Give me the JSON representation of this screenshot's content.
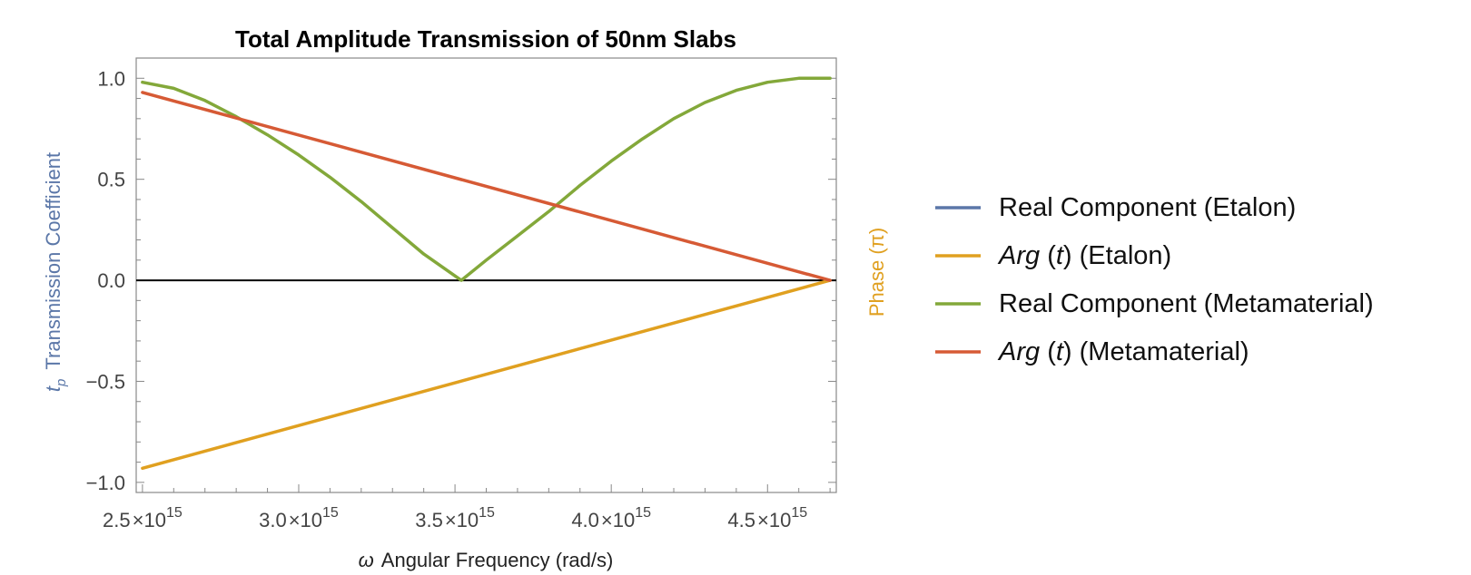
{
  "chart_data": {
    "type": "line",
    "title": "Total Amplitude Transmission of 50nm Slabs",
    "xlabel_symbol": "ω",
    "xlabel": "Angular Frequency (rad/s)",
    "ylabel_symbol": "t",
    "ylabel_subscript": "p",
    "ylabel": "Transmission Coefficient",
    "ylabel_right": "Phase (π)",
    "xlim": [
      2480000000000000.0,
      4720000000000000.0
    ],
    "ylim": [
      -1.05,
      1.1
    ],
    "xticks": [
      2500000000000000.0,
      3000000000000000.0,
      3500000000000000.0,
      4000000000000000.0,
      4500000000000000.0
    ],
    "xtick_labels": [
      {
        "mantissa": "2.5",
        "exp": "15"
      },
      {
        "mantissa": "3.0",
        "exp": "15"
      },
      {
        "mantissa": "3.5",
        "exp": "15"
      },
      {
        "mantissa": "4.0",
        "exp": "15"
      },
      {
        "mantissa": "4.5",
        "exp": "15"
      }
    ],
    "yticks": [
      1.0,
      0.5,
      0.0,
      -0.5,
      -1.0
    ],
    "ytick_labels": [
      "1.0",
      "0.5",
      "0.0",
      "−0.5",
      "−1.0"
    ],
    "grid": false,
    "legend_position": "right",
    "series": [
      {
        "name": "Real Component (Etalon)",
        "name_parts": [
          {
            "text": "Real Component (Etalon)",
            "italic": false
          }
        ],
        "color": "#5b77a8",
        "x": [],
        "y": []
      },
      {
        "name": "Arg (t) (Etalon)",
        "name_parts": [
          {
            "text": "Arg",
            "italic": true
          },
          {
            "text": " (",
            "italic": false
          },
          {
            "text": "t",
            "italic": true
          },
          {
            "text": ") (Etalon)",
            "italic": false
          }
        ],
        "color": "#e0a020",
        "x": [
          2500000000000000.0,
          4700000000000000.0
        ],
        "y": [
          -0.93,
          0.0
        ]
      },
      {
        "name": "Real Component (Metamaterial)",
        "name_parts": [
          {
            "text": "Real Component (Metamaterial)",
            "italic": false
          }
        ],
        "color": "#83a83a",
        "x": [
          2500000000000000.0,
          2600000000000000.0,
          2700000000000000.0,
          2800000000000000.0,
          2900000000000000.0,
          3000000000000000.0,
          3100000000000000.0,
          3200000000000000.0,
          3300000000000000.0,
          3400000000000000.0,
          3520000000000000.0,
          3600000000000000.0,
          3700000000000000.0,
          3800000000000000.0,
          3900000000000000.0,
          4000000000000000.0,
          4100000000000000.0,
          4200000000000000.0,
          4300000000000000.0,
          4400000000000000.0,
          4500000000000000.0,
          4600000000000000.0,
          4700000000000000.0
        ],
        "y": [
          0.98,
          0.95,
          0.89,
          0.81,
          0.72,
          0.62,
          0.51,
          0.39,
          0.26,
          0.13,
          0.0,
          0.1,
          0.22,
          0.34,
          0.47,
          0.59,
          0.7,
          0.8,
          0.88,
          0.94,
          0.98,
          1.0,
          1.0
        ]
      },
      {
        "name": "Arg (t) (Metamaterial)",
        "name_parts": [
          {
            "text": "Arg",
            "italic": true
          },
          {
            "text": " (",
            "italic": false
          },
          {
            "text": "t",
            "italic": true
          },
          {
            "text": ") (Metamaterial)",
            "italic": false
          }
        ],
        "color": "#d65a35",
        "x": [
          2500000000000000.0,
          4700000000000000.0
        ],
        "y": [
          0.93,
          0.0
        ]
      }
    ]
  }
}
